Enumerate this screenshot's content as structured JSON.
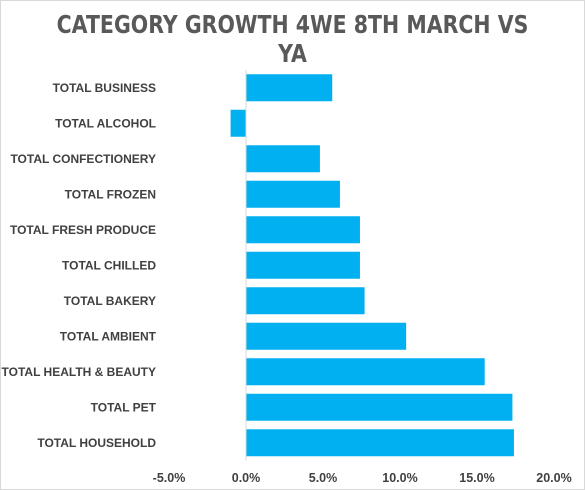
{
  "chart_data": {
    "type": "bar",
    "orientation": "horizontal",
    "title": "CATEGORY  GROWTH  4WE  8TH  MARCH  VS  YA",
    "categories": [
      "TOTAL BUSINESS",
      "TOTAL ALCOHOL",
      "TOTAL CONFECTIONERY",
      "TOTAL FROZEN",
      "TOTAL FRESH PRODUCE",
      "TOTAL CHILLED",
      "TOTAL BAKERY",
      "TOTAL AMBIENT",
      "TOTAL HEALTH & BEAUTY",
      "TOTAL PET",
      "TOTAL HOUSEHOLD"
    ],
    "values": [
      5.6,
      -1.0,
      4.8,
      6.1,
      7.4,
      7.4,
      7.7,
      10.4,
      15.5,
      17.3,
      17.4
    ],
    "xlim": [
      -5.0,
      20.0
    ],
    "xticks": [
      "-5.0%",
      "0.0%",
      "5.0%",
      "10.0%",
      "15.0%",
      "20.0%"
    ],
    "xtick_values": [
      -5,
      0,
      5,
      10,
      15,
      20
    ],
    "xlabel": "",
    "ylabel": "",
    "grid": false,
    "legend": "none",
    "bar_color": "#00b0f0"
  }
}
